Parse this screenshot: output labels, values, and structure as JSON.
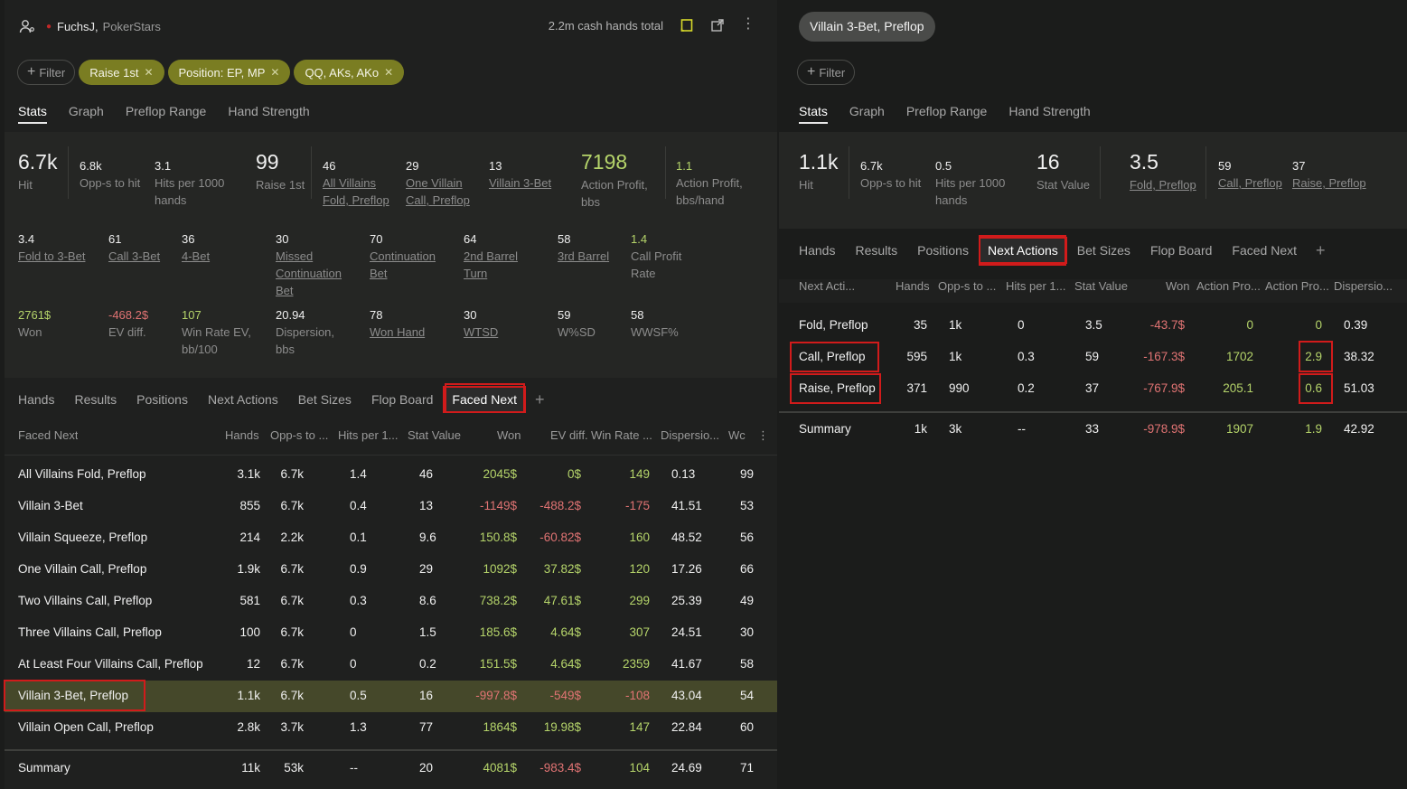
{
  "left": {
    "user": {
      "name": "FuchsJ,",
      "site": "PokerStars"
    },
    "total": "2.2m cash hands total",
    "filter_label": "Filter",
    "tags": [
      "Raise 1st",
      "Position: EP, MP",
      "QQ, AKs, AKo"
    ],
    "tabs": [
      "Stats",
      "Graph",
      "Preflop Range",
      "Hand Strength"
    ],
    "stats": {
      "hit": {
        "v": "6.7k",
        "l": "Hit"
      },
      "opps": {
        "v": "6.8k",
        "l": "Opp-s to hit"
      },
      "hits1000": {
        "v": "3.1",
        "l1": "Hits per 1000",
        "l2": "hands"
      },
      "raise1st": {
        "v": "99",
        "l": "Raise 1st"
      },
      "allfold": {
        "v": "46",
        "l1": "All Villains",
        "l2": "Fold, Preflop"
      },
      "onecall": {
        "v": "29",
        "l1": "One Villain",
        "l2": "Call, Preflop"
      },
      "v3bet": {
        "v": "13",
        "l": "Villain 3-Bet"
      },
      "actprofit": {
        "v": "7198",
        "l1": "Action Profit,",
        "l2": "bbs"
      },
      "actprofithand": {
        "v": "1.1",
        "l1": "Action Profit,",
        "l2": "bbs/hand"
      },
      "fold3bet": {
        "v": "3.4",
        "l": "Fold to 3-Bet"
      },
      "call3bet": {
        "v": "61",
        "l": "Call 3-Bet"
      },
      "fourbet": {
        "v": "36",
        "l": "4-Bet"
      },
      "missedcb": {
        "v": "30",
        "l1": "Missed",
        "l2": "Continuation",
        "l3": "Bet"
      },
      "cb": {
        "v": "70",
        "l1": "Continuation",
        "l2": "Bet"
      },
      "barrel2": {
        "v": "64",
        "l1": "2nd Barrel",
        "l2": "Turn"
      },
      "barrel3": {
        "v": "58",
        "l": "3rd Barrel"
      },
      "callprofit": {
        "v": "1.4",
        "l1": "Call Profit",
        "l2": "Rate"
      },
      "won": {
        "v": "2761$",
        "l": "Won"
      },
      "evdiff": {
        "v": "-468.2$",
        "l": "EV diff."
      },
      "winrate": {
        "v": "107",
        "l1": "Win Rate EV,",
        "l2": "bb/100"
      },
      "dispersion": {
        "v": "20.94",
        "l1": "Dispersion,",
        "l2": "bbs"
      },
      "wonhand": {
        "v": "78",
        "l": "Won Hand"
      },
      "wtsd": {
        "v": "30",
        "l": "WTSD"
      },
      "wsd": {
        "v": "59",
        "l": "W%SD"
      },
      "wwsf": {
        "v": "58",
        "l": "WWSF%"
      }
    },
    "subtabs": [
      "Hands",
      "Results",
      "Positions",
      "Next Actions",
      "Bet Sizes",
      "Flop Board",
      "Faced Next"
    ],
    "columns": [
      "Faced Next",
      "Hands",
      "Opp-s to ...",
      "Hits per 1...",
      "Stat Value",
      "Won",
      "EV diff.",
      "Win Rate ...",
      "Dispersio...",
      "Wc"
    ],
    "rows": [
      {
        "name": "All Villains Fold, Preflop",
        "hands": "3.1k",
        "opps": "6.7k",
        "hits": "1.4",
        "stat": "46",
        "won": "2045$",
        "ev": "0$",
        "wr": "149",
        "disp": "0.13",
        "wc": "99"
      },
      {
        "name": "Villain 3-Bet",
        "hands": "855",
        "opps": "6.7k",
        "hits": "0.4",
        "stat": "13",
        "won": "-1149$",
        "ev": "-488.2$",
        "wr": "-175",
        "disp": "41.51",
        "wc": "53"
      },
      {
        "name": "Villain Squeeze, Preflop",
        "hands": "214",
        "opps": "2.2k",
        "hits": "0.1",
        "stat": "9.6",
        "won": "150.8$",
        "ev": "-60.82$",
        "wr": "160",
        "disp": "48.52",
        "wc": "56"
      },
      {
        "name": "One Villain Call, Preflop",
        "hands": "1.9k",
        "opps": "6.7k",
        "hits": "0.9",
        "stat": "29",
        "won": "1092$",
        "ev": "37.82$",
        "wr": "120",
        "disp": "17.26",
        "wc": "66"
      },
      {
        "name": "Two Villains Call, Preflop",
        "hands": "581",
        "opps": "6.7k",
        "hits": "0.3",
        "stat": "8.6",
        "won": "738.2$",
        "ev": "47.61$",
        "wr": "299",
        "disp": "25.39",
        "wc": "49"
      },
      {
        "name": "Three Villains Call, Preflop",
        "hands": "100",
        "opps": "6.7k",
        "hits": "0",
        "stat": "1.5",
        "won": "185.6$",
        "ev": "4.64$",
        "wr": "307",
        "disp": "24.51",
        "wc": "30"
      },
      {
        "name": "At Least Four Villains Call, Preflop",
        "hands": "12",
        "opps": "6.7k",
        "hits": "0",
        "stat": "0.2",
        "won": "151.5$",
        "ev": "4.64$",
        "wr": "2359",
        "disp": "41.67",
        "wc": "58"
      },
      {
        "name": "Villain 3-Bet, Preflop",
        "hands": "1.1k",
        "opps": "6.7k",
        "hits": "0.5",
        "stat": "16",
        "won": "-997.8$",
        "ev": "-549$",
        "wr": "-108",
        "disp": "43.04",
        "wc": "54"
      },
      {
        "name": "Villain Open Call, Preflop",
        "hands": "2.8k",
        "opps": "3.7k",
        "hits": "1.3",
        "stat": "77",
        "won": "1864$",
        "ev": "19.98$",
        "wr": "147",
        "disp": "22.84",
        "wc": "60"
      }
    ],
    "summary": {
      "name": "Summary",
      "hands": "11k",
      "opps": "53k",
      "hits": "--",
      "stat": "20",
      "won": "4081$",
      "ev": "-983.4$",
      "wr": "104",
      "disp": "24.69",
      "wc": "71"
    }
  },
  "right": {
    "title": "Villain 3-Bet, Preflop",
    "filter_label": "Filter",
    "tabs": [
      "Stats",
      "Graph",
      "Preflop Range",
      "Hand Strength"
    ],
    "stats": {
      "hit": {
        "v": "1.1k",
        "l": "Hit"
      },
      "opps": {
        "v": "6.7k",
        "l": "Opp-s to hit"
      },
      "hits1000": {
        "v": "0.5",
        "l1": "Hits per 1000",
        "l2": "hands"
      },
      "statval": {
        "v": "16",
        "l": "Stat Value"
      },
      "foldpre": {
        "v": "3.5",
        "l": "Fold, Preflop"
      },
      "callpre": {
        "v": "59",
        "l": "Call, Preflop"
      },
      "raisepre": {
        "v": "37",
        "l": "Raise, Preflop"
      }
    },
    "subtabs": [
      "Hands",
      "Results",
      "Positions",
      "Next Actions",
      "Bet Sizes",
      "Flop Board",
      "Faced Next"
    ],
    "columns": [
      "Next Acti...",
      "Hands",
      "Opp-s to ...",
      "Hits per 1...",
      "Stat Value",
      "Won",
      "Action Pro...",
      "Action Pro...",
      "Dispersio..."
    ],
    "rows": [
      {
        "name": "Fold, Preflop",
        "hands": "35",
        "opps": "1k",
        "hits": "0",
        "stat": "3.5",
        "won": "-43.7$",
        "ap1": "0",
        "ap2": "0",
        "disp": "0.39"
      },
      {
        "name": "Call, Preflop",
        "hands": "595",
        "opps": "1k",
        "hits": "0.3",
        "stat": "59",
        "won": "-167.3$",
        "ap1": "1702",
        "ap2": "2.9",
        "disp": "38.32"
      },
      {
        "name": "Raise, Preflop",
        "hands": "371",
        "opps": "990",
        "hits": "0.2",
        "stat": "37",
        "won": "-767.9$",
        "ap1": "205.1",
        "ap2": "0.6",
        "disp": "51.03"
      }
    ],
    "summary": {
      "name": "Summary",
      "hands": "1k",
      "opps": "3k",
      "hits": "--",
      "stat": "33",
      "won": "-978.9$",
      "ap1": "1907",
      "ap2": "1.9",
      "disp": "42.92"
    }
  }
}
